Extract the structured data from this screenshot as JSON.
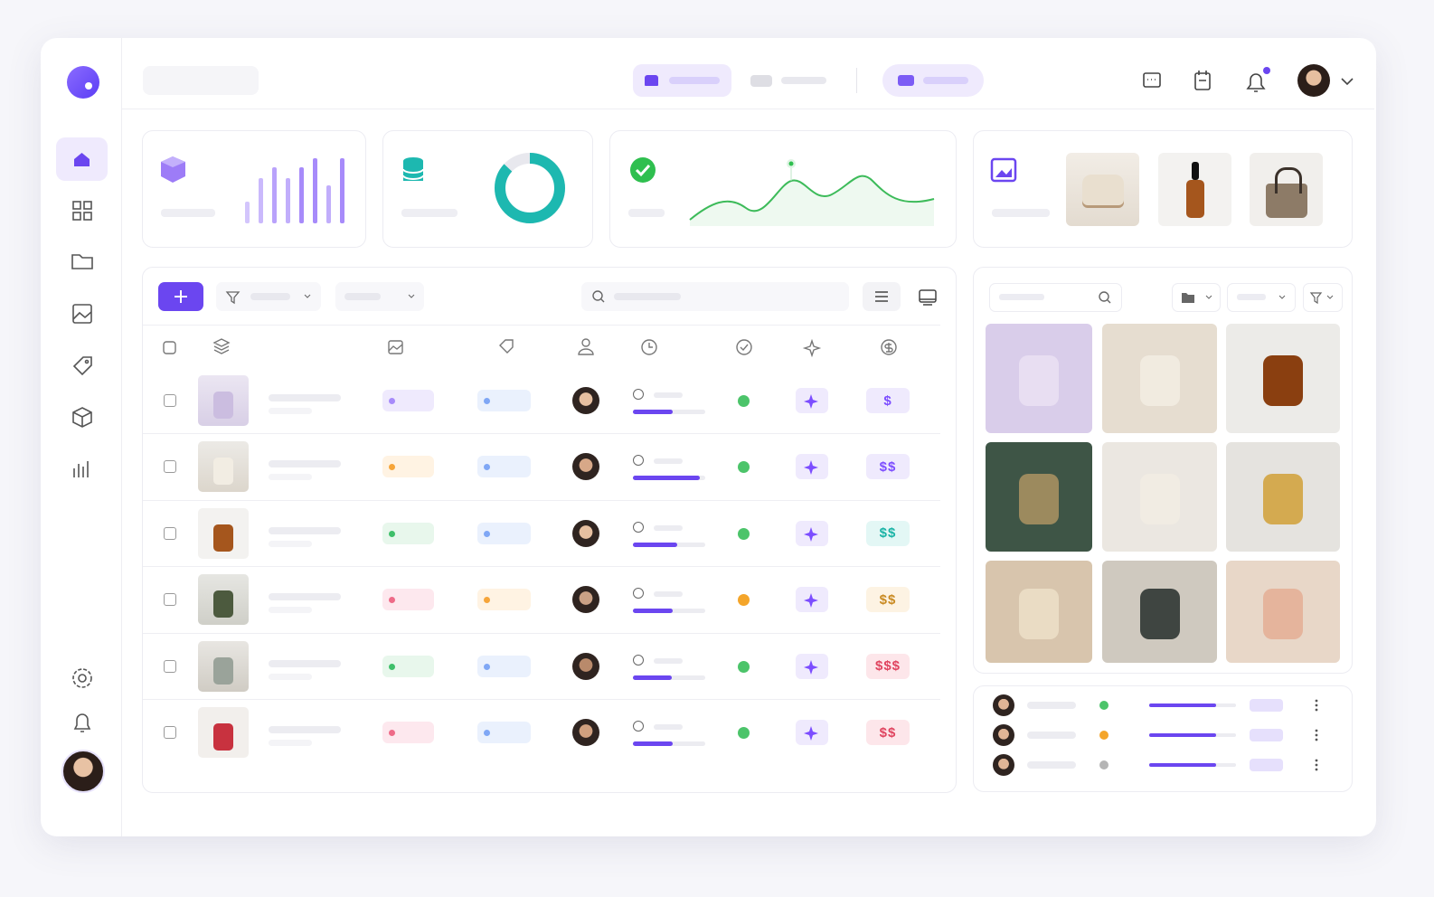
{
  "table": {
    "rows": [
      {
        "price": "$"
      },
      {
        "price": "$$"
      },
      {
        "price": "$$"
      },
      {
        "price": "$$"
      },
      {
        "price": "$$$"
      },
      {
        "price": "$$"
      }
    ]
  }
}
